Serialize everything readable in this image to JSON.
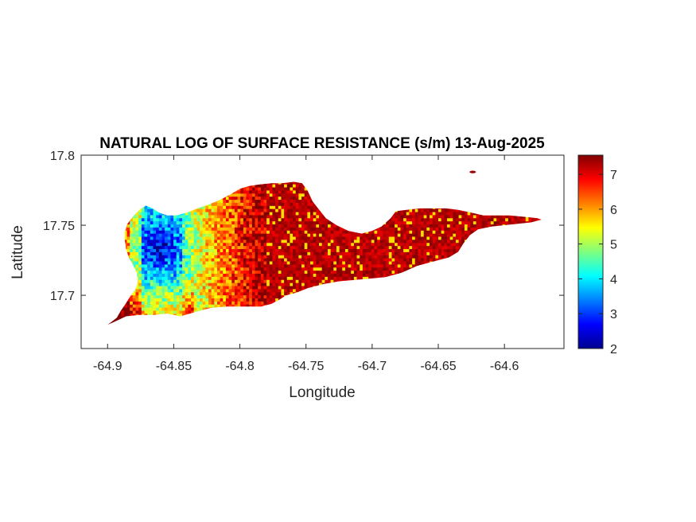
{
  "chart_data": {
    "type": "heatmap",
    "title": "NATURAL LOG OF SURFACE RESISTANCE (s/m) 13-Aug-2025",
    "xlabel": "Longitude",
    "ylabel": "Latitude",
    "xlim": [
      -64.92,
      -64.555
    ],
    "ylim": [
      17.662,
      17.8
    ],
    "x_ticks": [
      {
        "value": -64.9,
        "label": "-64.9"
      },
      {
        "value": -64.85,
        "label": "-64.85"
      },
      {
        "value": -64.8,
        "label": "-64.8"
      },
      {
        "value": -64.75,
        "label": "-64.75"
      },
      {
        "value": -64.7,
        "label": "-64.7"
      },
      {
        "value": -64.65,
        "label": "-64.65"
      },
      {
        "value": -64.6,
        "label": "-64.6"
      }
    ],
    "y_ticks": [
      {
        "value": 17.7,
        "label": "17.7"
      },
      {
        "value": 17.75,
        "label": "17.75"
      },
      {
        "value": 17.8,
        "label": "17.8"
      }
    ],
    "colorbar": {
      "colormap": "jet",
      "range": [
        2,
        7.55
      ],
      "ticks": [
        {
          "value": 2,
          "label": "2"
        },
        {
          "value": 3,
          "label": "3"
        },
        {
          "value": 4,
          "label": "4"
        },
        {
          "value": 5,
          "label": "5"
        },
        {
          "value": 6,
          "label": "6"
        },
        {
          "value": 7,
          "label": "7"
        }
      ]
    },
    "grid": false,
    "island_outline": [
      [
        -64.9,
        17.679
      ],
      [
        -64.897,
        17.681
      ],
      [
        -64.893,
        17.684
      ],
      [
        -64.89,
        17.689
      ],
      [
        -64.887,
        17.693
      ],
      [
        -64.883,
        17.699
      ],
      [
        -64.879,
        17.704
      ],
      [
        -64.877,
        17.71
      ],
      [
        -64.878,
        17.716
      ],
      [
        -64.881,
        17.722
      ],
      [
        -64.884,
        17.727
      ],
      [
        -64.886,
        17.733
      ],
      [
        -64.887,
        17.739
      ],
      [
        -64.887,
        17.745
      ],
      [
        -64.885,
        17.751
      ],
      [
        -64.881,
        17.756
      ],
      [
        -64.876,
        17.761
      ],
      [
        -64.871,
        17.764
      ],
      [
        -64.866,
        17.762
      ],
      [
        -64.861,
        17.759
      ],
      [
        -64.855,
        17.757
      ],
      [
        -64.848,
        17.757
      ],
      [
        -64.84,
        17.759
      ],
      [
        -64.832,
        17.762
      ],
      [
        -64.823,
        17.765
      ],
      [
        -64.815,
        17.768
      ],
      [
        -64.807,
        17.772
      ],
      [
        -64.8,
        17.776
      ],
      [
        -64.793,
        17.778
      ],
      [
        -64.786,
        17.779
      ],
      [
        -64.776,
        17.78
      ],
      [
        -64.768,
        17.78
      ],
      [
        -64.759,
        17.781
      ],
      [
        -64.753,
        17.78
      ],
      [
        -64.749,
        17.775
      ],
      [
        -64.745,
        17.767
      ],
      [
        -64.74,
        17.761
      ],
      [
        -64.735,
        17.755
      ],
      [
        -64.727,
        17.75
      ],
      [
        -64.718,
        17.746
      ],
      [
        -64.708,
        17.744
      ],
      [
        -64.7,
        17.746
      ],
      [
        -64.693,
        17.749
      ],
      [
        -64.686,
        17.755
      ],
      [
        -64.682,
        17.76
      ],
      [
        -64.674,
        17.761
      ],
      [
        -64.664,
        17.762
      ],
      [
        -64.654,
        17.762
      ],
      [
        -64.644,
        17.762
      ],
      [
        -64.635,
        17.761
      ],
      [
        -64.625,
        17.759
      ],
      [
        -64.616,
        17.757
      ],
      [
        -64.606,
        17.757
      ],
      [
        -64.596,
        17.757
      ],
      [
        -64.585,
        17.756
      ],
      [
        -64.575,
        17.755
      ],
      [
        -64.572,
        17.754
      ],
      [
        -64.58,
        17.752
      ],
      [
        -64.59,
        17.751
      ],
      [
        -64.6,
        17.75
      ],
      [
        -64.61,
        17.749
      ],
      [
        -64.62,
        17.747
      ],
      [
        -64.626,
        17.743
      ],
      [
        -64.631,
        17.737
      ],
      [
        -64.635,
        17.731
      ],
      [
        -64.642,
        17.727
      ],
      [
        -64.654,
        17.724
      ],
      [
        -64.666,
        17.721
      ],
      [
        -64.678,
        17.716
      ],
      [
        -64.69,
        17.713
      ],
      [
        -64.701,
        17.712
      ],
      [
        -64.713,
        17.711
      ],
      [
        -64.725,
        17.71
      ],
      [
        -64.737,
        17.708
      ],
      [
        -64.749,
        17.705
      ],
      [
        -64.757,
        17.702
      ],
      [
        -64.765,
        17.7
      ],
      [
        -64.77,
        17.697
      ],
      [
        -64.776,
        17.694
      ],
      [
        -64.784,
        17.692
      ],
      [
        -64.797,
        17.692
      ],
      [
        -64.81,
        17.692
      ],
      [
        -64.822,
        17.691
      ],
      [
        -64.834,
        17.688
      ],
      [
        -64.845,
        17.685
      ],
      [
        -64.855,
        17.687
      ],
      [
        -64.865,
        17.686
      ],
      [
        -64.876,
        17.686
      ],
      [
        -64.886,
        17.685
      ],
      [
        -64.895,
        17.681
      ]
    ],
    "cays": [
      {
        "lon": -64.624,
        "lat": 17.788,
        "value": 7.4
      }
    ],
    "value_field_summary": [
      {
        "region": "far west (-64.90 to -64.89)",
        "value": 6.2
      },
      {
        "region": "west interior low (~-64.86, 17.735)",
        "value": 2.8
      },
      {
        "region": "west-central (-64.85 to -64.83)",
        "value": 4.3
      },
      {
        "region": "central (-64.83 to -64.79)",
        "value": 5.6
      },
      {
        "region": "east (-64.78 to -64.57)",
        "value": 7.3
      }
    ]
  }
}
